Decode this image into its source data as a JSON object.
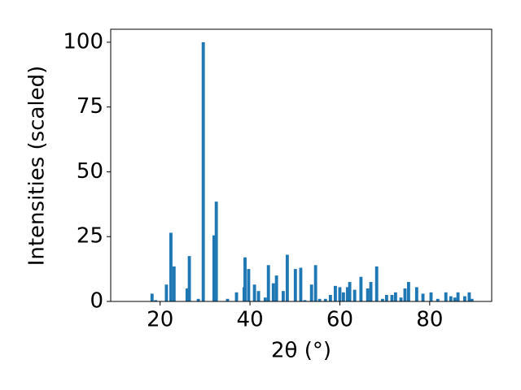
{
  "chart_data": {
    "type": "bar",
    "x_label": "2θ (°)",
    "y_label": "Intensities (scaled)",
    "x": [
      18.2,
      19.0,
      21.4,
      22.4,
      23.1,
      26.0,
      26.5,
      28.5,
      29.6,
      32.0,
      32.5,
      35.0,
      37.0,
      38.7,
      38.9,
      39.7,
      41.0,
      41.9,
      43.4,
      44.1,
      45.2,
      45.9,
      47.4,
      48.3,
      50.1,
      51.3,
      52.2,
      53.7,
      54.6,
      55.5,
      56.8,
      57.9,
      59.0,
      60.0,
      60.8,
      61.7,
      62.2,
      63.3,
      64.7,
      66.2,
      66.9,
      68.2,
      69.5,
      70.4,
      71.6,
      72.4,
      73.6,
      74.5,
      75.3,
      77.1,
      78.5,
      80.3,
      81.8,
      83.6,
      84.7,
      85.6,
      86.3,
      87.8,
      88.8,
      89.4
    ],
    "values": [
      3,
      0.5,
      6.5,
      26.5,
      13.5,
      5,
      17.5,
      1,
      100,
      25.5,
      38.5,
      1,
      3.5,
      5.5,
      17,
      12.5,
      6.5,
      4,
      1.5,
      14,
      7,
      10,
      4,
      18,
      12.5,
      13,
      0.5,
      6.5,
      14,
      1,
      1,
      2.5,
      6,
      5.5,
      3.5,
      5.5,
      7.5,
      4.5,
      9.5,
      5,
      7.5,
      13.5,
      1,
      2.5,
      2.5,
      3.5,
      1.5,
      5,
      7.5,
      5.5,
      3,
      3.5,
      1,
      3.5,
      2,
      1.5,
      3.5,
      2,
      3.5,
      1
    ],
    "color": "#1f77b4",
    "xlim": [
      9,
      93.8
    ],
    "xticks": [
      20,
      40,
      60,
      80
    ],
    "ylim": [
      0,
      105
    ],
    "yticks": [
      0,
      25,
      50,
      75,
      100
    ]
  }
}
